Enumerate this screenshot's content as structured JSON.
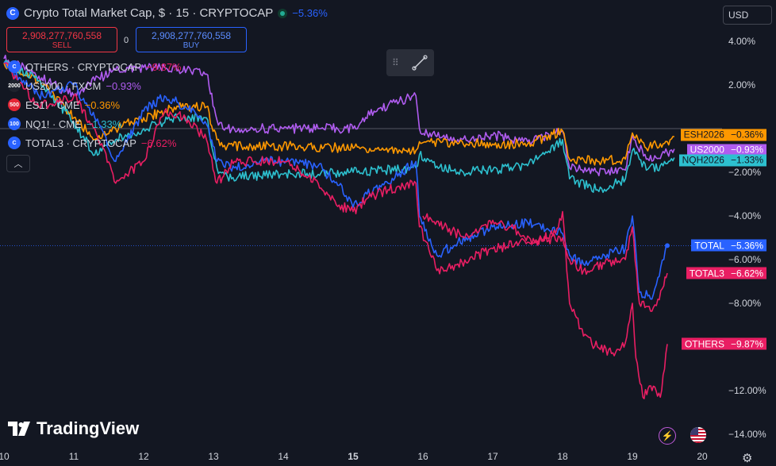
{
  "header": {
    "title": "Crypto Total Market Cap, $ · 15 · CRYPTOCAP",
    "change": "−5.36%",
    "sell_value": "2,908,277,760,558",
    "sell_label": "SELL",
    "buy_value": "2,908,277,760,558",
    "buy_label": "BUY",
    "spread": "0"
  },
  "currency": "USD",
  "legend": [
    {
      "icon": "C",
      "name": "OTHERS · CRYPTOCAP",
      "value": "−9.87%",
      "color": "#e91e63",
      "icon_bg": "#2962ff"
    },
    {
      "icon": "2000",
      "name": "US2000 · FXCM",
      "value": "−0.93%",
      "color": "#b05cf0",
      "icon_bg": "#1e222d"
    },
    {
      "icon": "500",
      "name": "ES1! · CME",
      "value": "−0.36%",
      "color": "#ff9800",
      "icon_bg": "#e32636"
    },
    {
      "icon": "100",
      "name": "NQ1! · CME",
      "value": "−1.33%",
      "color": "#2dc0cf",
      "icon_bg": "#2962ff"
    },
    {
      "icon": "C",
      "name": "TOTAL3 · CRYPTOCAP",
      "value": "−6.62%",
      "color": "#e91e63",
      "icon_bg": "#2962ff"
    }
  ],
  "price_labels": [
    {
      "name": "ESH2026",
      "value": "−0.36%",
      "bg": "#ff9800",
      "style": "dark"
    },
    {
      "name": "US2000",
      "value": "−0.93%",
      "bg": "#b05cf0",
      "style": "light"
    },
    {
      "name": "NQH2026",
      "value": "−1.33%",
      "bg": "#2dc0cf",
      "style": "dark"
    },
    {
      "name": "TOTAL",
      "value": "−5.36%",
      "bg": "#2962ff",
      "style": "light"
    },
    {
      "name": "TOTAL3",
      "value": "−6.62%",
      "bg": "#e91e63",
      "style": "light"
    },
    {
      "name": "OTHERS",
      "value": "−9.87%",
      "bg": "#e91e63",
      "style": "light"
    }
  ],
  "branding": "TradingView",
  "chart_data": {
    "type": "line",
    "x_ticks": [
      "10",
      "11",
      "12",
      "13",
      "14",
      "15",
      "16",
      "17",
      "18",
      "19",
      "20"
    ],
    "y_ticks": [
      "4.00%",
      "2.00%",
      "−2.00%",
      "−4.00%",
      "−6.00%",
      "−8.00%",
      "−12.00%",
      "−14.00%"
    ],
    "y_tick_values": [
      4,
      2,
      -2,
      -4,
      -6,
      -8,
      -12,
      -14
    ],
    "ylim": [
      -14.5,
      5
    ],
    "xlim": [
      10,
      20.4
    ],
    "series": [
      {
        "name": "US2000",
        "color": "#b05cf0",
        "final": -0.93,
        "x": [
          10.0,
          10.5,
          11.0,
          11.3,
          11.6,
          12.0,
          12.5,
          12.9,
          13.05,
          13.2,
          13.6,
          14.0,
          14.5,
          15.0,
          15.3,
          15.6,
          15.9,
          15.95,
          16.1,
          16.5,
          17.0,
          17.5,
          18.0,
          18.1,
          18.5,
          18.9,
          19.0,
          19.2,
          19.5,
          19.6
        ],
        "y": [
          3.2,
          2.4,
          1.5,
          2.2,
          2.7,
          2.8,
          2.7,
          2.5,
          0.4,
          0.0,
          0.0,
          0.0,
          0.0,
          0.0,
          0.8,
          1.2,
          1.5,
          0.0,
          -0.2,
          -0.5,
          -0.3,
          -0.6,
          -0.1,
          -1.8,
          -2.0,
          -1.9,
          -0.3,
          -1.4,
          -1.1,
          -0.93
        ]
      },
      {
        "name": "ESH2026",
        "color": "#ff9800",
        "final": -0.36,
        "x": [
          10.0,
          10.5,
          11.0,
          11.3,
          11.6,
          12.0,
          12.5,
          12.9,
          13.05,
          13.2,
          14.0,
          15.0,
          15.9,
          15.95,
          16.1,
          16.5,
          17.0,
          17.5,
          18.0,
          18.1,
          18.5,
          18.9,
          19.0,
          19.2,
          19.5,
          19.6
        ],
        "y": [
          3.0,
          2.2,
          0.5,
          -0.5,
          0.0,
          0.5,
          1.0,
          1.0,
          -0.5,
          -0.8,
          -0.8,
          -0.9,
          -1.0,
          -0.6,
          -0.6,
          -0.7,
          -0.7,
          -0.7,
          -0.1,
          -1.4,
          -1.5,
          -1.4,
          -0.2,
          -0.9,
          -0.6,
          -0.36
        ]
      },
      {
        "name": "NQH2026",
        "color": "#2dc0cf",
        "final": -1.33,
        "x": [
          10.0,
          10.5,
          11.0,
          11.3,
          11.6,
          12.0,
          12.5,
          12.9,
          13.05,
          13.2,
          14.0,
          15.0,
          15.9,
          15.95,
          16.1,
          16.5,
          17.0,
          17.5,
          18.0,
          18.1,
          18.5,
          18.9,
          19.0,
          19.2,
          19.5,
          19.6
        ],
        "y": [
          3.0,
          2.2,
          0.3,
          -1.2,
          -0.5,
          0.0,
          0.5,
          0.5,
          -1.8,
          -2.2,
          -2.1,
          -2.0,
          -1.8,
          -1.2,
          -1.5,
          -2.0,
          -1.9,
          -1.7,
          -0.5,
          -2.3,
          -2.8,
          -2.3,
          -1.0,
          -1.9,
          -1.6,
          -1.33
        ]
      },
      {
        "name": "TOTAL",
        "color": "#2962ff",
        "final": -5.36,
        "x": [
          10.0,
          10.5,
          11.0,
          11.3,
          11.6,
          12.0,
          12.3,
          12.6,
          12.9,
          13.05,
          13.3,
          13.6,
          14.0,
          14.5,
          14.8,
          15.0,
          15.2,
          15.5,
          15.9,
          15.95,
          16.2,
          16.5,
          17.0,
          17.5,
          18.0,
          18.1,
          18.3,
          18.6,
          18.9,
          19.0,
          19.1,
          19.3,
          19.45,
          19.5
        ],
        "y": [
          3.0,
          1.5,
          2.0,
          0.5,
          -1.5,
          0.8,
          1.5,
          1.0,
          0.2,
          -1.5,
          -1.8,
          -1.5,
          -1.5,
          -1.7,
          -2.6,
          -3.6,
          -3.0,
          -2.5,
          -1.5,
          -4.0,
          -5.8,
          -5.2,
          -4.5,
          -4.3,
          -4.8,
          -5.8,
          -6.2,
          -5.8,
          -5.5,
          -4.0,
          -7.5,
          -7.6,
          -6.0,
          -5.36
        ]
      },
      {
        "name": "TOTAL3",
        "color": "#e91e63",
        "final": -6.62,
        "x": [
          10.0,
          10.5,
          11.0,
          11.3,
          11.6,
          12.0,
          12.3,
          12.6,
          12.9,
          13.05,
          13.3,
          13.6,
          14.0,
          14.5,
          14.8,
          15.0,
          15.2,
          15.5,
          15.9,
          15.95,
          16.2,
          16.5,
          17.0,
          17.5,
          18.0,
          18.1,
          18.3,
          18.6,
          18.9,
          19.0,
          19.1,
          19.3,
          19.45,
          19.5
        ],
        "y": [
          3.0,
          1.0,
          1.5,
          0.0,
          -2.5,
          -1.5,
          0.8,
          0.5,
          -0.5,
          -2.5,
          -1.5,
          -1.5,
          -1.5,
          -2.5,
          -3.5,
          -3.8,
          -3.2,
          -2.8,
          -2.5,
          -4.5,
          -6.5,
          -6.2,
          -5.5,
          -5.2,
          -5.0,
          -6.0,
          -6.5,
          -6.2,
          -6.0,
          -4.5,
          -8.0,
          -8.2,
          -7.2,
          -6.62
        ]
      },
      {
        "name": "OTHERS",
        "color": "#e91e63",
        "final": -9.87,
        "x": [
          16.0,
          16.3,
          16.6,
          17.0,
          17.3,
          17.6,
          17.9,
          18.0,
          18.1,
          18.3,
          18.5,
          18.7,
          18.9,
          19.0,
          19.05,
          19.15,
          19.3,
          19.4,
          19.5
        ],
        "y": [
          -4.0,
          -4.5,
          -5.0,
          -4.2,
          -4.6,
          -5.2,
          -4.8,
          -3.8,
          -8.0,
          -9.5,
          -10.0,
          -10.3,
          -9.8,
          -8.0,
          -10.5,
          -12.3,
          -11.8,
          -12.3,
          -9.87
        ]
      }
    ]
  }
}
